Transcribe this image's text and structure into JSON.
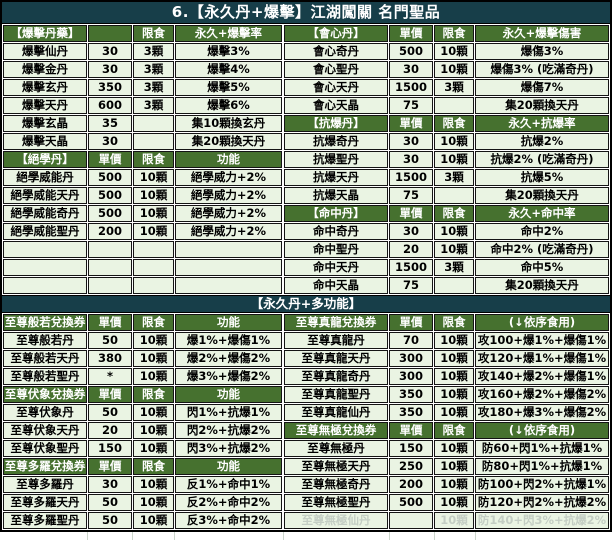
{
  "title": "6.【永久丹+爆擊】江湖闖關 名門聖品",
  "banner": "【永久丹+多功能】",
  "colors": {
    "title_bar_bg": "#173e49",
    "section_header_bg": "#46712f",
    "row_bg": "#eaf4e3",
    "header_text": "#ffffff",
    "yellow_accent_text": "#ffff00",
    "disabled_text": "#c4cec4",
    "grid_border": "#141414"
  },
  "tables": {
    "top_left": [
      {
        "t": "h",
        "c": [
          "【爆擊丹藥】",
          "",
          "限食",
          "永久+爆擊率"
        ]
      },
      {
        "t": "d",
        "c": [
          "爆擊仙丹",
          "30",
          "3顆",
          "爆擊3%"
        ]
      },
      {
        "t": "d",
        "c": [
          "爆擊金丹",
          "30",
          "3顆",
          "爆擊4%"
        ]
      },
      {
        "t": "d",
        "c": [
          "爆擊玄丹",
          "350",
          "3顆",
          "爆擊5%"
        ]
      },
      {
        "t": "d",
        "c": [
          "爆擊天丹",
          "600",
          "3顆",
          "爆擊6%"
        ]
      },
      {
        "t": "d",
        "c": [
          "爆擊玄晶",
          "35",
          "",
          "集10顆換玄丹"
        ]
      },
      {
        "t": "d",
        "c": [
          "爆擊天晶",
          "30",
          "",
          "集20顆換天丹"
        ]
      },
      {
        "t": "h",
        "c": [
          "【絕學丹】",
          "單價",
          "限食",
          "功能"
        ]
      },
      {
        "t": "d",
        "c": [
          "絕學威能丹",
          "500",
          "10顆",
          "絕學威力+2%"
        ]
      },
      {
        "t": "d",
        "c": [
          "絕學威能天丹",
          "500",
          "10顆",
          "絕學威力+2%"
        ]
      },
      {
        "t": "d",
        "c": [
          "絕學威能奇丹",
          "500",
          "10顆",
          "絕學威力+2%"
        ]
      },
      {
        "t": "d",
        "c": [
          "絕學威能聖丹",
          "200",
          "10顆",
          "絕學威力+2%"
        ]
      },
      {
        "t": "e",
        "c": [
          "",
          "",
          "",
          ""
        ]
      },
      {
        "t": "e",
        "c": [
          "",
          "",
          "",
          ""
        ]
      },
      {
        "t": "e",
        "c": [
          "",
          "",
          "",
          ""
        ]
      }
    ],
    "top_right": [
      {
        "t": "h",
        "c": [
          "【會心丹】",
          "單價",
          "限食",
          "永久+爆擊傷害"
        ]
      },
      {
        "t": "d",
        "c": [
          "會心奇丹",
          "500",
          "10顆",
          "爆傷3%"
        ]
      },
      {
        "t": "d",
        "c": [
          "會心聖丹",
          "30",
          "10顆",
          "爆傷3% (吃滿奇丹)"
        ]
      },
      {
        "t": "d",
        "c": [
          "會心天丹",
          "1500",
          "3顆",
          "爆傷7%"
        ]
      },
      {
        "t": "d",
        "c": [
          "會心天晶",
          "75",
          "",
          "集20顆換天丹"
        ]
      },
      {
        "t": "h",
        "c": [
          "【抗爆丹】",
          "單價",
          "限食",
          "永久+抗爆率"
        ]
      },
      {
        "t": "d",
        "c": [
          "抗爆奇丹",
          "30",
          "10顆",
          "抗爆2%"
        ]
      },
      {
        "t": "d",
        "c": [
          "抗爆聖丹",
          "30",
          "10顆",
          "抗爆2% (吃滿奇丹)"
        ]
      },
      {
        "t": "d",
        "c": [
          "抗爆天丹",
          "1500",
          "3顆",
          "抗爆5%"
        ]
      },
      {
        "t": "d",
        "c": [
          "抗爆天晶",
          "75",
          "",
          "集20顆換天丹"
        ]
      },
      {
        "t": "h",
        "c": [
          "【命中丹】",
          "單價",
          "限食",
          "永久+命中率"
        ]
      },
      {
        "t": "d",
        "c": [
          "命中奇丹",
          "30",
          "10顆",
          "命中2%"
        ]
      },
      {
        "t": "d",
        "c": [
          "命中聖丹",
          "20",
          "10顆",
          "命中2% (吃滿奇丹)"
        ]
      },
      {
        "t": "d",
        "c": [
          "命中天丹",
          "1500",
          "3顆",
          "命中5%"
        ]
      },
      {
        "t": "d",
        "c": [
          "命中天晶",
          "75",
          "",
          "集20顆換天丹"
        ]
      }
    ],
    "bottom_left": [
      {
        "t": "h",
        "c": [
          "至尊般若兌換券",
          "單價",
          "限食",
          "功能"
        ]
      },
      {
        "t": "d",
        "c": [
          "至尊般若丹",
          "50",
          "10顆",
          "爆1%+爆傷1%"
        ]
      },
      {
        "t": "d",
        "c": [
          "至尊般若天丹",
          "380",
          "10顆",
          "爆2%+爆傷2%"
        ]
      },
      {
        "t": "d",
        "c": [
          "至尊般若聖丹",
          "*",
          "10顆",
          "爆3%+爆傷2%"
        ]
      },
      {
        "t": "h",
        "c": [
          "至尊伏象兌換券",
          "單價",
          "限食",
          "功能"
        ]
      },
      {
        "t": "d",
        "c": [
          "至尊伏象丹",
          "50",
          "10顆",
          "閃1%+抗爆1%"
        ]
      },
      {
        "t": "d",
        "c": [
          "至尊伏象天丹",
          "20",
          "10顆",
          "閃2%+抗爆2%"
        ]
      },
      {
        "t": "d",
        "c": [
          "至尊伏象聖丹",
          "150",
          "10顆",
          "閃3%+抗爆2%"
        ]
      },
      {
        "t": "h",
        "c": [
          "至尊多羅兌換券",
          "單價",
          "限食",
          "功能"
        ]
      },
      {
        "t": "d",
        "c": [
          "至尊多羅丹",
          "30",
          "10顆",
          "反1%+命中1%"
        ]
      },
      {
        "t": "d",
        "c": [
          "至尊多羅天丹",
          "50",
          "10顆",
          "反2%+命中2%"
        ]
      },
      {
        "t": "d",
        "c": [
          "至尊多羅聖丹",
          "50",
          "10顆",
          "反3%+命中2%"
        ]
      }
    ],
    "bottom_right": [
      {
        "t": "hy",
        "c": [
          "至尊真龍兌換券",
          "單價",
          "限食",
          "(↓依序食用)"
        ]
      },
      {
        "t": "d",
        "c": [
          "至尊真龍丹",
          "70",
          "10顆",
          "攻100+爆1%+爆傷1%"
        ]
      },
      {
        "t": "d",
        "c": [
          "至尊真龍天丹",
          "300",
          "10顆",
          "攻120+爆1%+爆傷1%"
        ]
      },
      {
        "t": "d",
        "c": [
          "至尊真龍奇丹",
          "300",
          "10顆",
          "攻140+爆2%+爆傷1%"
        ]
      },
      {
        "t": "d",
        "c": [
          "至尊真龍聖丹",
          "350",
          "10顆",
          "攻160+爆2%+爆傷2%"
        ]
      },
      {
        "t": "d",
        "c": [
          "至尊真龍仙丹",
          "350",
          "10顆",
          "攻180+爆3%+爆傷2%"
        ]
      },
      {
        "t": "hy",
        "c": [
          "至尊無極兌換券",
          "單價",
          "限食",
          "(↓依序食用)"
        ]
      },
      {
        "t": "d",
        "c": [
          "至尊無極丹",
          "150",
          "10顆",
          "防60+閃1%+抗爆1%"
        ]
      },
      {
        "t": "d",
        "c": [
          "至尊無極天丹",
          "250",
          "10顆",
          "防80+閃1%+抗爆1%"
        ]
      },
      {
        "t": "d",
        "c": [
          "至尊無極奇丹",
          "200",
          "10顆",
          "防100+閃2%+抗爆1%"
        ]
      },
      {
        "t": "d",
        "c": [
          "至尊無極聖丹",
          "500",
          "10顆",
          "防120+閃2%+抗爆2%"
        ]
      },
      {
        "t": "g",
        "c": [
          "至尊無極仙丹",
          "",
          "10顆",
          "防140+閃3%+抗爆2%"
        ]
      }
    ]
  }
}
